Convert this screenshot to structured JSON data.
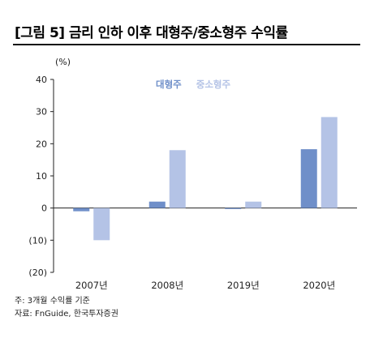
{
  "title": "[그림 5] 금리 인하 이후 대형주/중소형주 수익률",
  "unit_label": "(%)",
  "notes": [
    "주: 3개월 수익률 기준",
    "자료: FnGuide, 한국투자증권"
  ],
  "colors": {
    "large_cap": "#6f8fc9",
    "small_mid_cap": "#b4c3e6",
    "axis": "#222222"
  },
  "chart_data": {
    "type": "bar",
    "categories": [
      "2007년",
      "2008년",
      "2019년",
      "2020년"
    ],
    "series": [
      {
        "name": "대형주",
        "values": [
          -1.0,
          2.0,
          -0.3,
          18.3
        ]
      },
      {
        "name": "중소형주",
        "values": [
          -10.0,
          18.0,
          2.0,
          28.3
        ]
      }
    ],
    "ylim": [
      -20,
      40
    ],
    "yticks": [
      -20,
      -10,
      0,
      10,
      20,
      30,
      40
    ],
    "ytick_labels": [
      "(20)",
      "(10)",
      "0",
      "10",
      "20",
      "30",
      "40"
    ],
    "grid": false,
    "legend": "top-center"
  }
}
